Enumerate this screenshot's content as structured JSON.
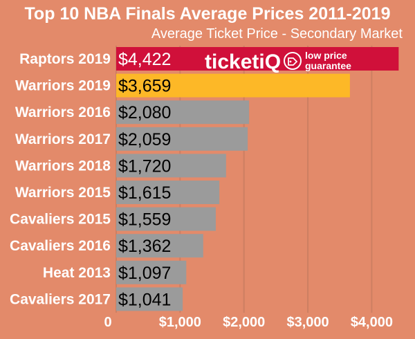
{
  "chart_data": {
    "type": "bar",
    "orientation": "horizontal",
    "title": "Top 10 NBA Finals Average Prices 2011-2019",
    "subtitle": "Average Ticket Price - Secondary Market",
    "categories": [
      "Raptors 2019",
      "Warriors 2019",
      "Warriors 2016",
      "Warriors 2017",
      "Warriors 2018",
      "Warriors 2015",
      "Cavaliers 2015",
      "Cavaliers 2016",
      "Heat 2013",
      "Cavaliers 2017"
    ],
    "values": [
      4422,
      3659,
      2080,
      2059,
      1720,
      1615,
      1559,
      1362,
      1097,
      1041
    ],
    "value_labels": [
      "$4,422",
      "$3,659",
      "$2,080",
      "$2,059",
      "$1,720",
      "$1,615",
      "$1,559",
      "$1,362",
      "$1,097",
      "$1,041"
    ],
    "bar_colors": [
      "#D0103A",
      "#FDB827",
      "#9B9B9B",
      "#9B9B9B",
      "#9B9B9B",
      "#9B9B9B",
      "#9B9B9B",
      "#9B9B9B",
      "#9B9B9B",
      "#9B9B9B"
    ],
    "value_label_colors": [
      "#ffffff",
      "#000000",
      "#000000",
      "#000000",
      "#000000",
      "#000000",
      "#000000",
      "#000000",
      "#000000",
      "#000000"
    ],
    "xlim": [
      0,
      4500
    ],
    "xticks": [
      0,
      1000,
      2000,
      3000,
      4000
    ],
    "xtick_labels": [
      "0",
      "$1,000",
      "$2,000",
      "$3,000",
      "$4,000"
    ],
    "grid": true,
    "grid_color": "#CD7F62"
  },
  "logo": {
    "brand": "ticketiQ",
    "tagline_line1": "low price",
    "tagline_line2": "guarantee"
  }
}
